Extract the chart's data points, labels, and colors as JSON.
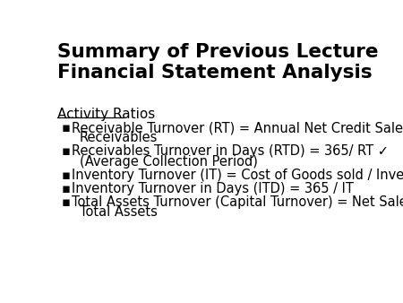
{
  "title_line1": "Summary of Previous Lecture",
  "title_line2": "Financial Statement Analysis",
  "section_header": "Activity Ratios",
  "bullet_items": [
    [
      "Receivable Turnover (RT) = Annual Net Credit Sales /",
      "Receivables"
    ],
    [
      "Receivables Turnover in Days (RTD) = 365/ RT ✓",
      "(Average Collection Period)"
    ],
    [
      "Inventory Turnover (IT) = Cost of Goods sold / Inventory"
    ],
    [
      "Inventory Turnover in Days (ITD) = 365 / IT"
    ],
    [
      "Total Assets Turnover (Capital Turnover) = Net Sales /",
      "Total Assets"
    ]
  ],
  "bg_color": "#ffffff",
  "title_color": "#000000",
  "text_color": "#000000",
  "title_fontsize": 15.5,
  "section_fontsize": 11,
  "bullet_fontsize": 10.5
}
